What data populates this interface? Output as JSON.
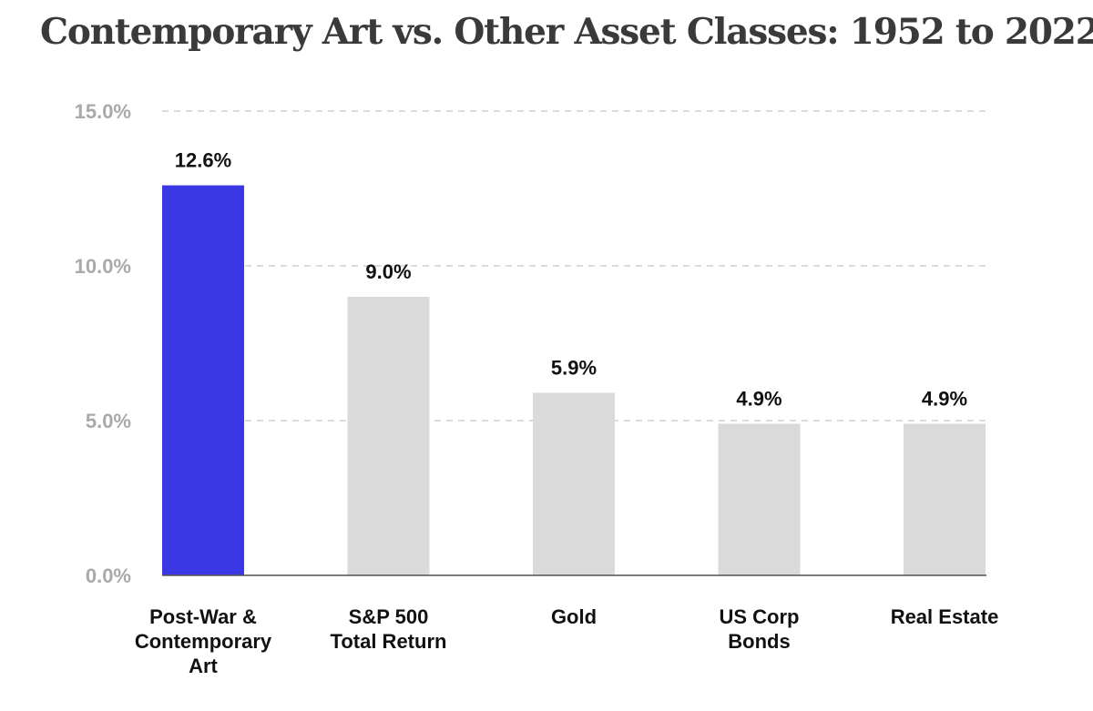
{
  "chart_data": {
    "type": "bar",
    "title": "Contemporary Art vs. Other Asset Classes: 1952 to 2022",
    "xlabel": "",
    "ylabel": "",
    "ylim": [
      0,
      15
    ],
    "yticks": [
      0,
      5,
      10,
      15
    ],
    "ytick_labels": [
      "0.0%",
      "5.0%",
      "10.0%",
      "15.0%"
    ],
    "grid": true,
    "categories": [
      [
        "Post-War &",
        "Contemporary",
        "Art"
      ],
      [
        "S&P 500",
        "Total Return"
      ],
      [
        "Gold"
      ],
      [
        "US Corp",
        "Bonds"
      ],
      [
        "Real Estate"
      ]
    ],
    "values": [
      12.6,
      9.0,
      5.9,
      4.9,
      4.9
    ],
    "value_labels": [
      "12.6%",
      "9.0%",
      "5.9%",
      "4.9%",
      "4.9%"
    ],
    "highlight_index": 0,
    "colors": {
      "highlight": "#3a37e4",
      "bar": "#dadada",
      "grid": "#c8c8c8",
      "axis": "#555555"
    }
  }
}
